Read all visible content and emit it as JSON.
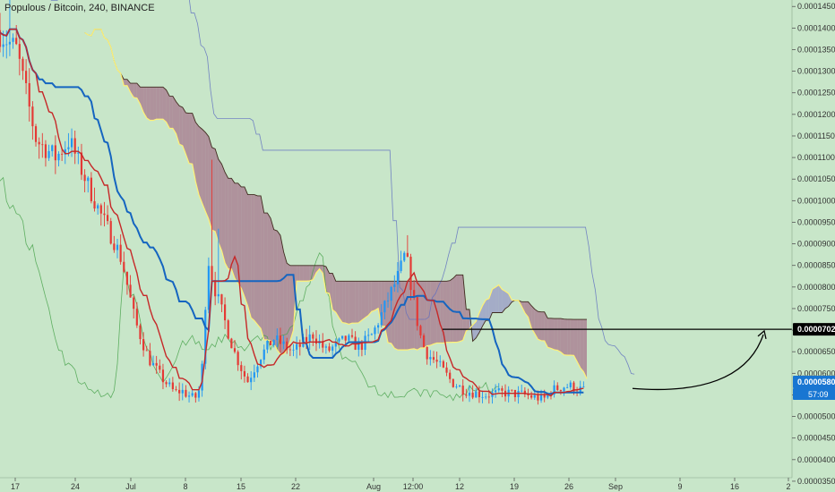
{
  "colors": {
    "background": "#c8e6c9",
    "candle_up": "#2196f3",
    "candle_down": "#e53935",
    "conversion_line": "#1565c0",
    "base_line": "#c62828",
    "lagging_span": "#43a047",
    "leading_a": "#fff176",
    "leading_b": "#3f2a1e",
    "cloud_bear": "#9e5a7e",
    "cloud_bull": "#8c86c6",
    "band": "#5c6bc0",
    "price_tag_bg": "#1976d2",
    "marked_tag_bg": "#000000"
  },
  "chart_data": {
    "type": "candlestick",
    "title": "Populous / Bitcoin, 240, BINANCE",
    "yaxis": {
      "min": 3.25e-05,
      "max": 0.0001465,
      "tick_labels": [
        "0.0001450",
        "0.0001400",
        "0.0001350",
        "0.0001300",
        "0.0001250",
        "0.0001200",
        "0.0001150",
        "0.0001100",
        "0.0001050",
        "0.0001000",
        "0.0000950",
        "0.0000900",
        "0.0000850",
        "0.0000800",
        "0.0000750",
        "0.0000700",
        "0.0000650",
        "0.0000600",
        "0.0000550",
        "0.0000500",
        "0.0000450",
        "0.0000400",
        "0.0000350"
      ]
    },
    "xaxis": {
      "tick_labels": [
        "17",
        "24",
        "Jul",
        "8",
        "15",
        "22",
        "Aug",
        "12:00",
        "12",
        "19",
        "26",
        "Sep",
        "9",
        "16",
        "2"
      ]
    },
    "price_tags": [
      {
        "id": "marked",
        "value": "0.0000702"
      },
      {
        "id": "current",
        "value": "0.0000580",
        "countdown": "57:09"
      }
    ],
    "horizontal_line": {
      "price": 7.02e-05,
      "from_date": "Aug 12:00"
    },
    "projection": {
      "from_price": 5.65e-05,
      "to_price": 6.9e-05,
      "shape": "curved arrow upward"
    },
    "price_path": [
      [
        0,
        0.0001395
      ],
      [
        3,
        0.000135
      ],
      [
        6,
        0.000114
      ],
      [
        9,
        0.00011
      ],
      [
        11,
        0.000114
      ],
      [
        14,
        0.000103
      ],
      [
        16,
        9.6e-05
      ],
      [
        18,
        9e-05
      ],
      [
        19,
        8.6e-05
      ],
      [
        21,
        7.2e-05
      ],
      [
        23,
        6.35e-05
      ],
      [
        25,
        5.9e-05
      ],
      [
        27,
        5.55e-05
      ],
      [
        28,
        5.6e-05
      ],
      [
        30,
        5.4e-05
      ],
      [
        31,
        5.7e-05
      ],
      [
        32,
        8.7e-05
      ],
      [
        33,
        8e-05
      ],
      [
        35,
        7e-05
      ],
      [
        36,
        6.5e-05
      ],
      [
        38,
        5.8e-05
      ],
      [
        40,
        6.4e-05
      ],
      [
        42,
        6.8e-05
      ],
      [
        45,
        6.5e-05
      ],
      [
        48,
        6.9e-05
      ],
      [
        50,
        6.5e-05
      ],
      [
        53,
        6.8e-05
      ],
      [
        55,
        6.6e-05
      ],
      [
        57,
        6.9e-05
      ],
      [
        59,
        7.6e-05
      ],
      [
        61,
        8.3e-05
      ],
      [
        62,
        8.8e-05
      ],
      [
        63,
        7.9e-05
      ],
      [
        64,
        7e-05
      ],
      [
        65,
        6.5e-05
      ],
      [
        67,
        6.2e-05
      ],
      [
        69,
        5.8e-05
      ],
      [
        71,
        5.6e-05
      ],
      [
        74,
        5.5e-05
      ],
      [
        77,
        5.55e-05
      ],
      [
        80,
        5.5e-05
      ],
      [
        83,
        5.4e-05
      ],
      [
        84,
        5.6e-05
      ],
      [
        86,
        5.7e-05
      ],
      [
        87,
        5.7e-05
      ],
      [
        89,
        5.6e-05
      ]
    ]
  }
}
